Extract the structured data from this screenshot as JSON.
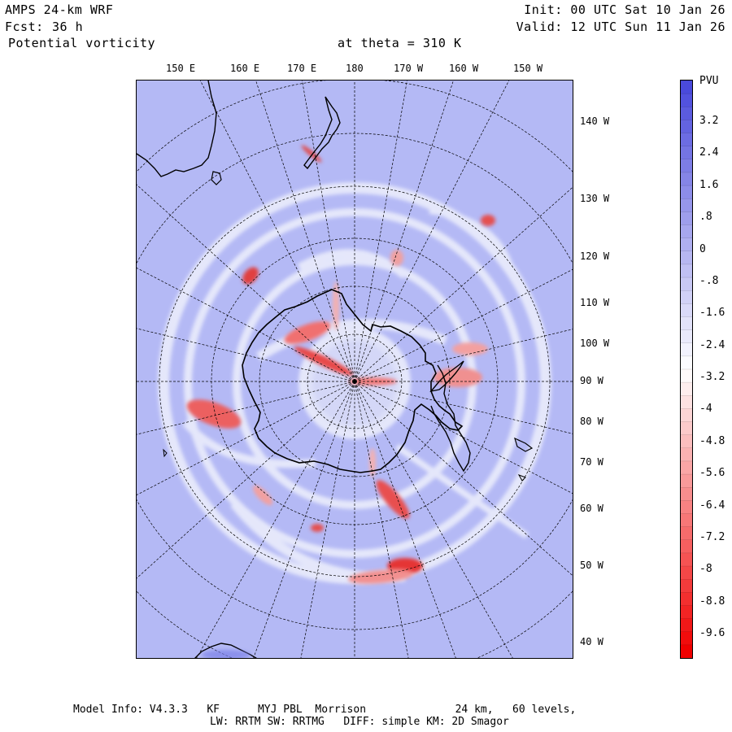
{
  "header": {
    "model": "AMPS 24-km WRF",
    "forecast_label": "Fcst:",
    "forecast_value": "36 h",
    "field": "Potential vorticity",
    "level": "at theta = 310 K",
    "init": "Init: 00 UTC Sat 10 Jan 26",
    "valid": "Valid: 12 UTC Sun 11 Jan 26"
  },
  "map": {
    "top_lon_labels": [
      "150 E",
      "160 E",
      "170 E",
      "180",
      "170 W",
      "160 W",
      "150 W"
    ],
    "right_lon_labels": [
      "140 W",
      "130 W",
      "120 W",
      "110 W",
      "100 W",
      "90 W",
      "80 W",
      "70 W",
      "60 W",
      "50 W",
      "40 W"
    ],
    "background_color": "#b4b9f5",
    "features": [
      {
        "name": "pv-anomaly-ross-sea",
        "intensity": 0.9
      },
      {
        "name": "pv-anomaly-ross-ice-shelf-east",
        "intensity": 0.75
      },
      {
        "name": "pv-anomaly-southeast-pacific",
        "intensity": 0.8
      },
      {
        "name": "pv-anomaly-weddell",
        "intensity": 0.85
      },
      {
        "name": "pv-anomaly-south-atlantic",
        "intensity": 1.0
      },
      {
        "name": "pv-anomaly-indian-ocean",
        "intensity": 0.8
      },
      {
        "name": "pv-anomaly-tasman",
        "intensity": 0.95
      },
      {
        "name": "pv-anomaly-pacific-north",
        "intensity": 0.9
      },
      {
        "name": "pv-anomaly-new-zealand",
        "intensity": 0.85
      }
    ]
  },
  "colorbar": {
    "unit": "PVU",
    "labels": [
      "3.2",
      "2.4",
      "1.6",
      ".8",
      "0",
      "-.8",
      "-1.6",
      "-2.4",
      "-3.2",
      "-4",
      "-4.8",
      "-5.6",
      "-6.4",
      "-7.2",
      "-8",
      "-8.8",
      "-9.6"
    ],
    "top_color": "#4a4adc",
    "mid_color": "#ffffff",
    "bottom_color": "#f00000"
  },
  "footer": {
    "line1": "Model Info: V4.3.3   KF      MYJ PBL  Morrison              24 km,   60 levels,",
    "line2": "LW: RRTM SW: RRTMG   DIFF: simple KM: 2D Smagor"
  }
}
